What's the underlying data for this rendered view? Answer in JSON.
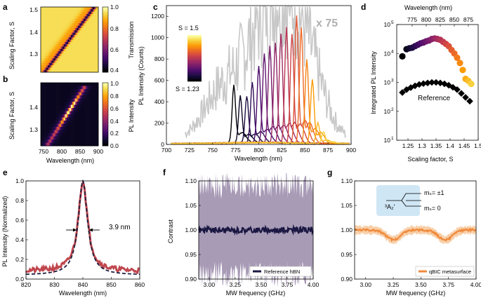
{
  "palette": {
    "magma": [
      "#000004",
      "#1b0c41",
      "#4a0c6b",
      "#781c6d",
      "#a52c60",
      "#cf4446",
      "#ed6925",
      "#fb9b06",
      "#f7d13d",
      "#fcffa4"
    ],
    "inferno": [
      "#000004",
      "#160b39",
      "#420a68",
      "#6a176e",
      "#932667",
      "#bc3754",
      "#dd513a",
      "#f37819",
      "#fca50a",
      "#f6d746",
      "#fcffa4"
    ],
    "spectrum_grey": "#c8c8c8",
    "fit_dash": "#1f2140",
    "pl_trace": "#c0474e",
    "ref_hbn": "#1a1842",
    "ref_band": "#a89bb6",
    "qbic": "#f08a3c",
    "qbic_band": "#f8cfa8",
    "inset_box": "#cfe6f5"
  },
  "panels": {
    "a": {
      "letter": "a",
      "ylabel": "Scaling Factor, S",
      "cbar_label": "Transmission",
      "cbar_ticks": [
        "1.0",
        "0.8",
        "0.6",
        "0.4"
      ],
      "yticks": [
        "1.5",
        "1.4",
        "1.3"
      ]
    },
    "b": {
      "letter": "b",
      "ylabel": "Scaling Factor, S",
      "cbar_label": "PL Intensity",
      "cbar_ticks": [
        "1.0",
        "0.8",
        "0.6",
        "0.4",
        "0.2",
        "0.0"
      ],
      "yticks": [
        "1.4",
        "1.3"
      ],
      "xticks": [
        "750",
        "800",
        "850",
        "900"
      ],
      "xlabel": "Wavelength (nm)"
    },
    "c": {
      "letter": "c",
      "ylabel": "PL Intensity (Counts)",
      "xlabel": "Wavelength (nm)",
      "multiplier": "x 75",
      "s_top": "S = 1.5",
      "s_bottom": "S = 1.23",
      "yticks": [
        "1200",
        "1000",
        "800",
        "600",
        "400",
        "200",
        "0"
      ],
      "xticks": [
        "700",
        "725",
        "750",
        "775",
        "800",
        "825",
        "850",
        "875",
        "900"
      ]
    },
    "d": {
      "letter": "d",
      "ylabel": "Integrated PL Intensity",
      "xlabel": "Scaling factor, S",
      "top_label": "Wavelength (nm)",
      "top_ticks": [
        "775",
        "800",
        "825",
        "850",
        "875"
      ],
      "yticks": [
        "10",
        "10",
        "10",
        "10",
        "10"
      ],
      "yexp": [
        "5",
        "4",
        "3",
        "2",
        "1"
      ],
      "xticks": [
        "1.25",
        "1.3",
        "1.35",
        "1.4",
        "1.45",
        "1.5"
      ],
      "reference_label": "Reference"
    },
    "e": {
      "letter": "e",
      "ylabel": "PL Intensity (Normalized)",
      "xlabel": "Wavelength (nm)",
      "fwhm": "3.9 nm",
      "yticks": [
        "1.0",
        "0.8",
        "0.6",
        "0.4",
        "0.2",
        "0.0"
      ],
      "xticks": [
        "820",
        "830",
        "840",
        "850",
        "860"
      ]
    },
    "f": {
      "letter": "f",
      "ylabel": "Contrast",
      "xlabel": "MW frequency (GHz)",
      "legend": "Reference hBN",
      "yticks": [
        "1.10",
        "1.05",
        "1.00",
        "0.95",
        "0.90"
      ],
      "xticks": [
        "3.00",
        "3.25",
        "3.50",
        "3.75",
        "4.00"
      ]
    },
    "g": {
      "letter": "g",
      "xlabel": "MW frequency (GHz)",
      "legend": "qBIC metasurface",
      "yticks": [
        "1.10",
        "1.05",
        "1.00",
        "0.95",
        "0.90"
      ],
      "xticks": [
        "3.00",
        "3.25",
        "3.50",
        "3.75",
        "4.00"
      ],
      "inset_state": "³A₂ʹ",
      "inset_pm1": "mₛ= ±1",
      "inset_0": "mₛ= 0"
    }
  },
  "chart_data": [
    {
      "id": "a",
      "type": "heatmap",
      "title": "",
      "xlabel": "Wavelength (nm)",
      "ylabel": "Scaling Factor, S",
      "xlim": [
        750,
        900
      ],
      "ylim": [
        1.22,
        1.5
      ],
      "colorbar": "Transmission",
      "clim": [
        0.4,
        1.0
      ],
      "note": "transmission dip runs diagonally from about 760 nm at S=1.22 to about 890 nm at S=1.5"
    },
    {
      "id": "b",
      "type": "heatmap",
      "title": "",
      "xlabel": "Wavelength (nm)",
      "ylabel": "Scaling Factor, S",
      "xlim": [
        750,
        900
      ],
      "ylim": [
        1.22,
        1.5
      ],
      "colorbar": "PL Intensity",
      "clim": [
        0.0,
        1.0
      ],
      "note": "PL peak follows diagonal from about 770 nm at S=1.23 to about 860 nm at S=1.47"
    },
    {
      "id": "c",
      "type": "line",
      "xlabel": "Wavelength (nm)",
      "ylabel": "PL Intensity (Counts)",
      "xlim": [
        700,
        900
      ],
      "ylim": [
        0,
        1300
      ],
      "reference_scale": "x 75",
      "peaks": [
        {
          "center": 773,
          "height": 530
        },
        {
          "center": 780,
          "height": 430
        },
        {
          "center": 787,
          "height": 430
        },
        {
          "center": 793,
          "height": 560
        },
        {
          "center": 800,
          "height": 700
        },
        {
          "center": 806,
          "height": 820
        },
        {
          "center": 812,
          "height": 890
        },
        {
          "center": 818,
          "height": 920
        },
        {
          "center": 824,
          "height": 1000
        },
        {
          "center": 830,
          "height": 1060
        },
        {
          "center": 836,
          "height": 1000
        },
        {
          "center": 841,
          "height": 1170
        },
        {
          "center": 846,
          "height": 1060
        },
        {
          "center": 852,
          "height": 770
        },
        {
          "center": 858,
          "height": 590
        },
        {
          "center": 864,
          "height": 190
        },
        {
          "center": 870,
          "height": 110
        }
      ],
      "reference_peaks": [
        {
          "center": 760,
          "height": 600
        },
        {
          "center": 800,
          "height": 950
        },
        {
          "center": 825,
          "height": 1050
        },
        {
          "center": 850,
          "height": 900
        }
      ]
    },
    {
      "id": "d",
      "type": "scatter",
      "xlabel": "Scaling factor, S",
      "ylabel": "Integrated PL Intensity",
      "xlim": [
        1.21,
        1.5
      ],
      "ylim_log10": [
        1,
        5
      ],
      "metasurface_x": [
        1.23,
        1.245,
        1.255,
        1.265,
        1.275,
        1.285,
        1.295,
        1.305,
        1.315,
        1.325,
        1.335,
        1.345,
        1.355,
        1.365,
        1.375,
        1.385,
        1.395,
        1.405,
        1.415,
        1.425,
        1.435,
        1.445,
        1.455,
        1.465,
        1.475
      ],
      "metasurface_log10": [
        3.9,
        4.15,
        4.18,
        4.2,
        4.25,
        4.3,
        4.35,
        4.38,
        4.42,
        4.45,
        4.5,
        4.52,
        4.5,
        4.47,
        4.4,
        4.33,
        4.25,
        4.12,
        4.0,
        3.85,
        3.67,
        3.43,
        3.12,
        3.05,
        2.95
      ],
      "reference_x": [
        1.23,
        1.245,
        1.26,
        1.275,
        1.29,
        1.305,
        1.32,
        1.335,
        1.35,
        1.365,
        1.38,
        1.395,
        1.41,
        1.425,
        1.44,
        1.455,
        1.47
      ],
      "reference_log10": [
        2.65,
        2.75,
        2.82,
        2.88,
        2.93,
        2.96,
        2.98,
        3.0,
        3.0,
        2.98,
        2.95,
        2.9,
        2.83,
        2.75,
        2.62,
        2.48,
        2.35
      ]
    },
    {
      "id": "e",
      "type": "line",
      "xlabel": "Wavelength (nm)",
      "ylabel": "PL Intensity (Normalized)",
      "xlim": [
        820,
        860
      ],
      "ylim": [
        0,
        1.0
      ],
      "peak_center": 840,
      "fwhm_nm": 3.9,
      "baseline": 0.08
    },
    {
      "id": "f",
      "type": "line",
      "series": [
        {
          "name": "Reference hBN",
          "mean": 1.0,
          "band": 0.09
        }
      ],
      "xlim": [
        2.9,
        4.0
      ],
      "ylim": [
        0.9,
        1.1
      ],
      "xlabel": "MW frequency (GHz)",
      "ylabel": "Contrast"
    },
    {
      "id": "g",
      "type": "line",
      "series": [
        {
          "name": "qBIC metasurface",
          "mean": 1.0,
          "band": 0.008
        }
      ],
      "dips": [
        {
          "center": 3.25,
          "depth": 0.02
        },
        {
          "center": 3.72,
          "depth": 0.02
        }
      ],
      "xlim": [
        2.9,
        4.0
      ],
      "ylim": [
        0.9,
        1.1
      ],
      "xlabel": "MW frequency (GHz)"
    }
  ]
}
